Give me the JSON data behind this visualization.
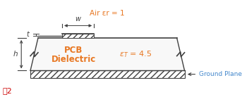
{
  "fig_label": "图2",
  "fig_label_color": "#cc0000",
  "air_label": "Air εr = 1",
  "pcb_text1": "PCB",
  "pcb_text2": "Dielectric",
  "pcb_er_label": "εT = 4.5",
  "ground_label": "Ground Plane",
  "text_color_orange": "#e87722",
  "text_color_dark": "#404040",
  "text_color_blue": "#4488cc",
  "bg_color": "#ffffff",
  "t_label": "t",
  "h_label": "h",
  "w_label": "w",
  "line_color": "#404040",
  "hatch_lw": 0.5,
  "trap_fill": "#f8f8f8"
}
